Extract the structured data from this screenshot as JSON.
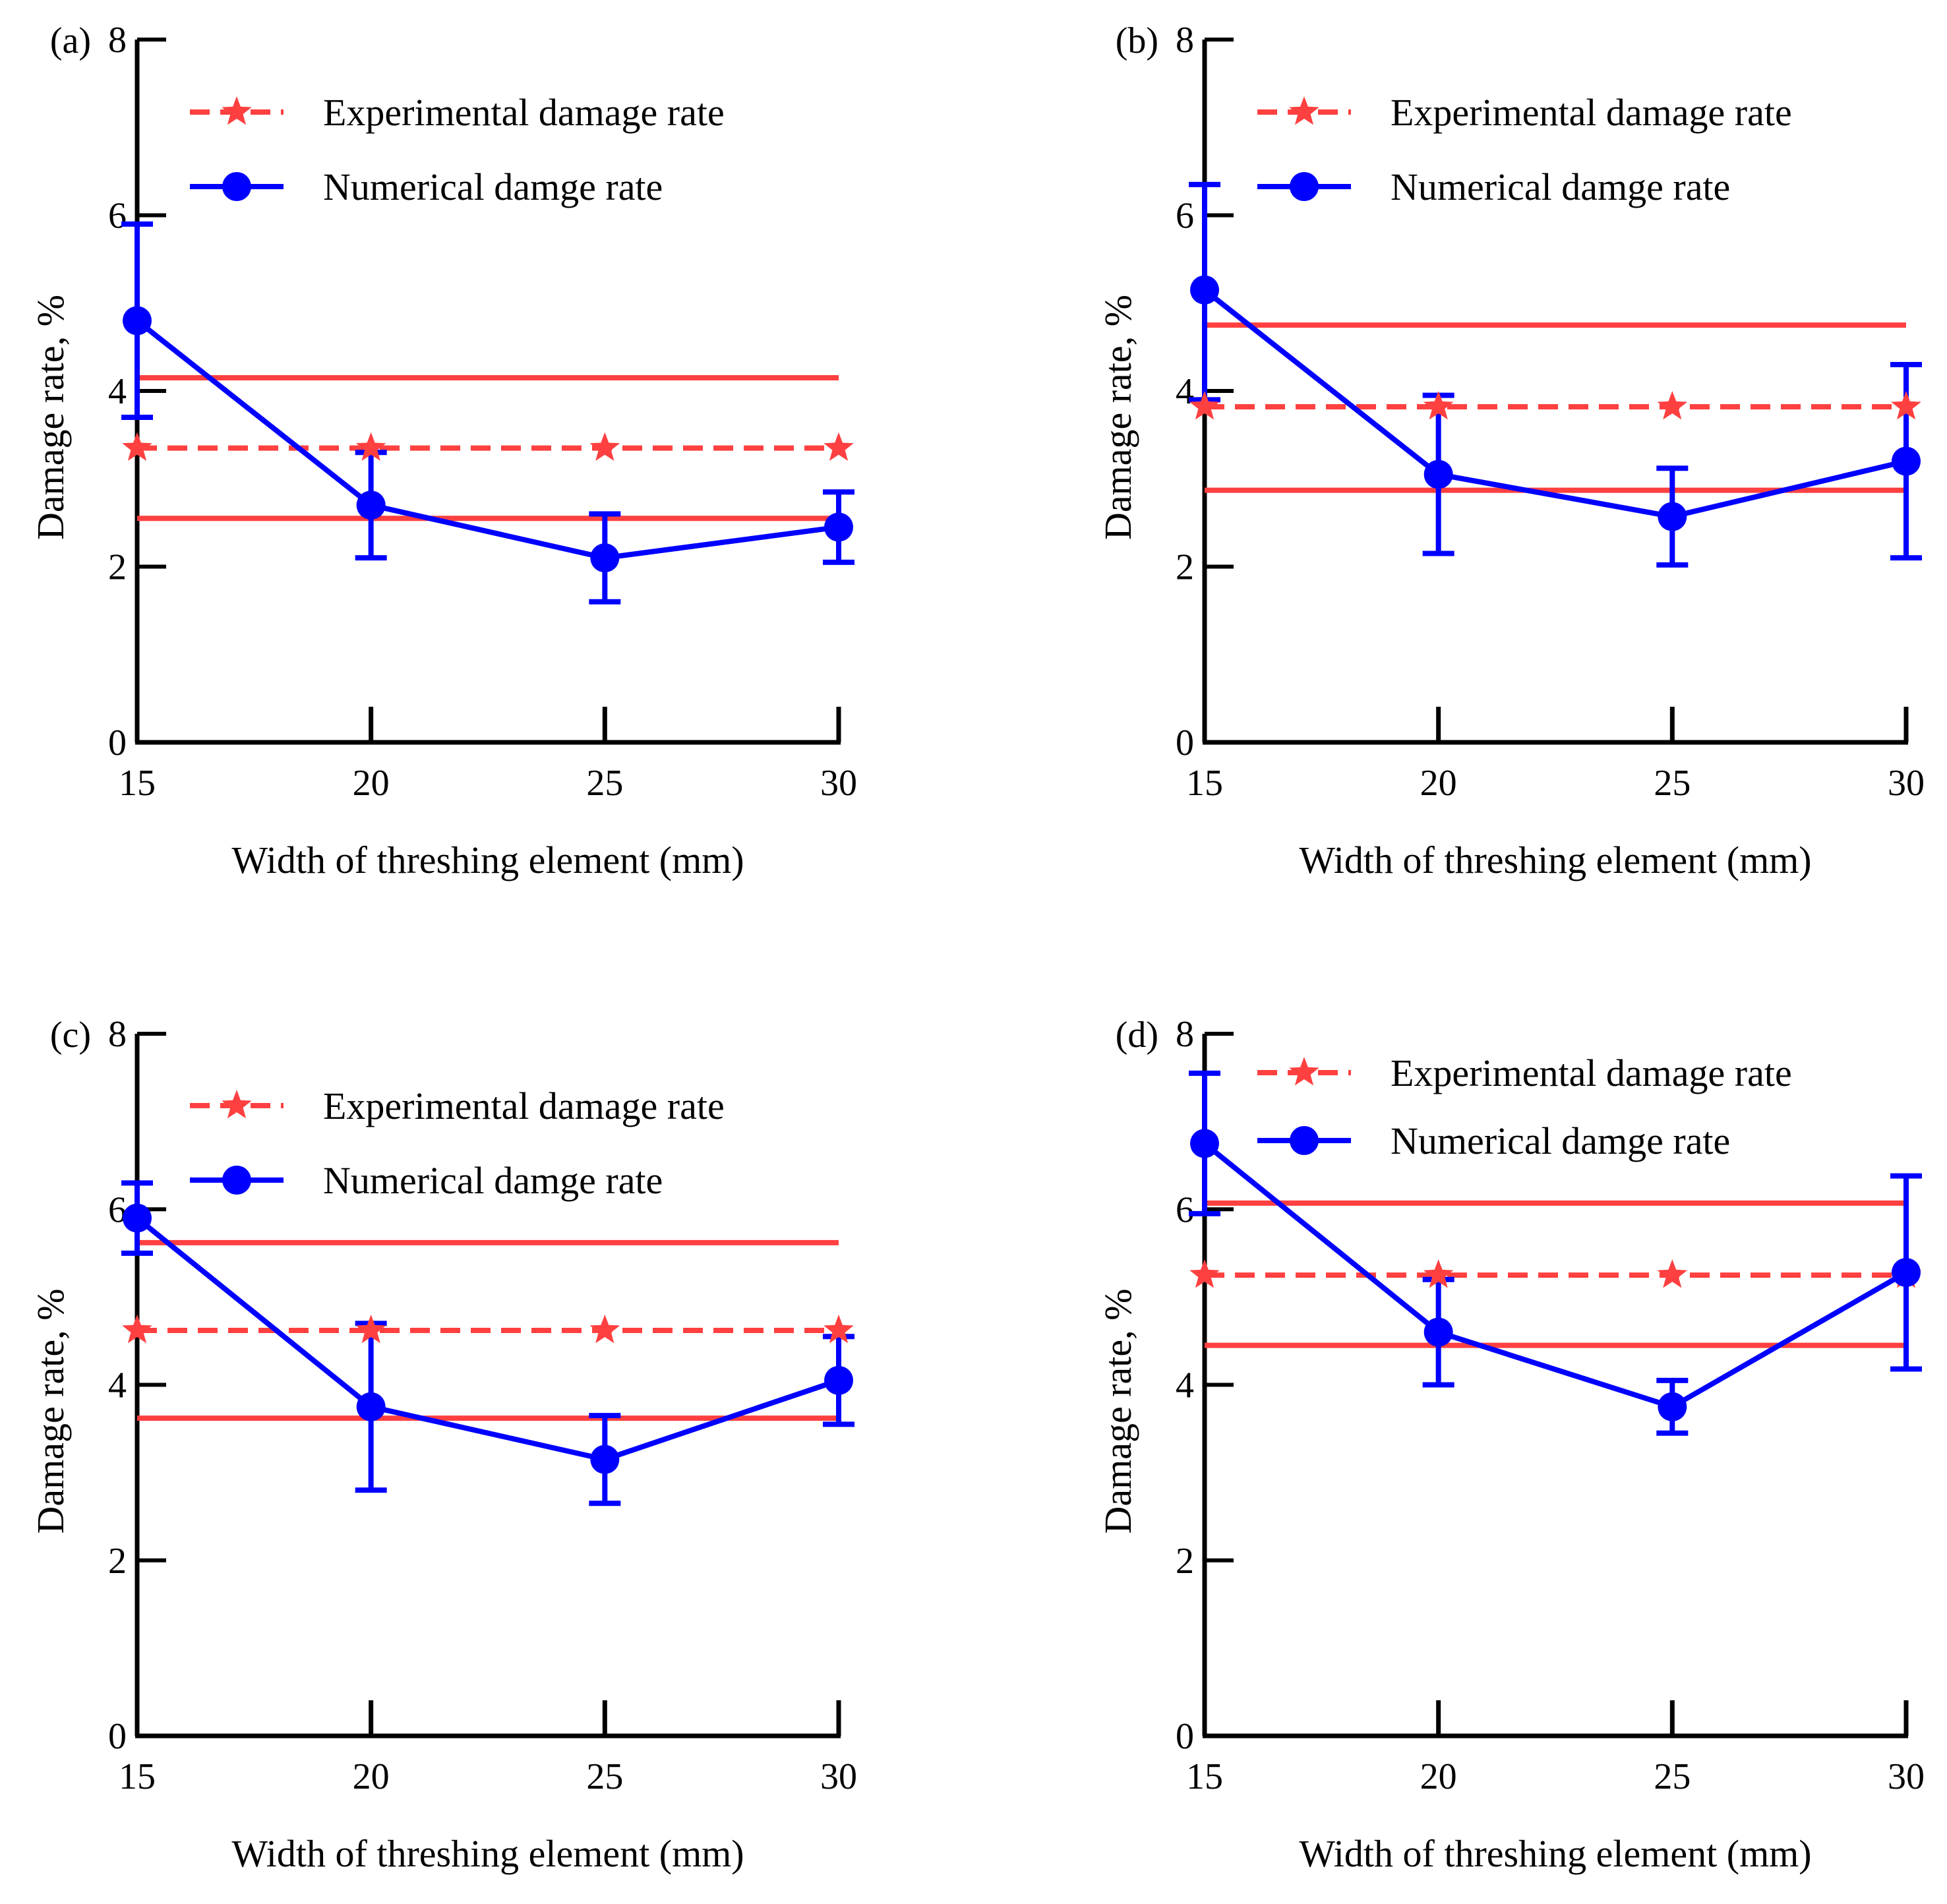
{
  "chart_data": [
    {
      "panel": "(a)",
      "type": "line",
      "xlabel": "Width of threshing element (mm)",
      "ylabel": "Damage rate, %",
      "x": [
        15,
        20,
        25,
        30
      ],
      "xticks": [
        "15",
        "20",
        "25",
        "30"
      ],
      "ylim": [
        0,
        8
      ],
      "yticks": [
        "0",
        "2",
        "4",
        "6",
        "8"
      ],
      "legend": [
        "Experimental damage rate",
        "Numerical damge rate"
      ],
      "legend_placement": "top",
      "series": [
        {
          "name": "Experimental damage rate",
          "style": "dashed-star",
          "color": "#ff4040",
          "values": [
            3.35,
            3.35,
            3.35,
            3.35
          ],
          "upper_band": 4.15,
          "lower_band": 2.55
        },
        {
          "name": "Numerical damge rate",
          "style": "solid-circle",
          "color": "#0000ff",
          "values": [
            4.8,
            2.7,
            2.1,
            2.45
          ],
          "err_low": [
            3.7,
            2.1,
            1.6,
            2.05
          ],
          "err_high": [
            5.9,
            3.3,
            2.6,
            2.85
          ]
        }
      ]
    },
    {
      "panel": "(b)",
      "type": "line",
      "xlabel": "Width of threshing element (mm)",
      "ylabel": "Damage rate, %",
      "x": [
        15,
        20,
        25,
        30
      ],
      "xticks": [
        "15",
        "20",
        "25",
        "30"
      ],
      "ylim": [
        0,
        8
      ],
      "yticks": [
        "0",
        "2",
        "4",
        "6",
        "8"
      ],
      "legend": [
        "Experimental damage rate",
        "Numerical damge rate"
      ],
      "legend_placement": "top",
      "series": [
        {
          "name": "Experimental damage rate",
          "style": "dashed-star",
          "color": "#ff4040",
          "values": [
            3.82,
            3.82,
            3.82,
            3.82
          ],
          "upper_band": 4.75,
          "lower_band": 2.87
        },
        {
          "name": "Numerical damge rate",
          "style": "solid-circle",
          "color": "#0000ff",
          "values": [
            5.15,
            3.05,
            2.57,
            3.2
          ],
          "err_low": [
            3.9,
            2.15,
            2.02,
            2.1
          ],
          "err_high": [
            6.35,
            3.95,
            3.12,
            4.3
          ]
        }
      ]
    },
    {
      "panel": "(c)",
      "type": "line",
      "xlabel": "Width of threshing element (mm)",
      "ylabel": "Damage rate, %",
      "x": [
        15,
        20,
        25,
        30
      ],
      "xticks": [
        "15",
        "20",
        "25",
        "30"
      ],
      "ylim": [
        0,
        8
      ],
      "yticks": [
        "0",
        "2",
        "4",
        "6",
        "8"
      ],
      "legend": [
        "Experimental damage rate",
        "Numerical damge rate"
      ],
      "legend_placement": "top",
      "series": [
        {
          "name": "Experimental damage rate",
          "style": "dashed-star",
          "color": "#ff4040",
          "values": [
            4.62,
            4.62,
            4.62,
            4.62
          ],
          "upper_band": 5.62,
          "lower_band": 3.62
        },
        {
          "name": "Numerical damge rate",
          "style": "solid-circle",
          "color": "#0000ff",
          "values": [
            5.9,
            3.75,
            3.15,
            4.05
          ],
          "err_low": [
            5.5,
            2.8,
            2.65,
            3.55
          ],
          "err_high": [
            6.3,
            4.7,
            3.65,
            4.55
          ]
        }
      ]
    },
    {
      "panel": "(d)",
      "type": "line",
      "xlabel": "Width of threshing element (mm)",
      "ylabel": "Damage rate, %",
      "x": [
        15,
        20,
        25,
        30
      ],
      "xticks": [
        "15",
        "20",
        "25",
        "30"
      ],
      "ylim": [
        0,
        8
      ],
      "yticks": [
        "0",
        "2",
        "4",
        "6",
        "8"
      ],
      "legend": [
        "Experimental damage rate",
        "Numerical damge rate"
      ],
      "legend_placement": "top",
      "series": [
        {
          "name": "Experimental damage rate",
          "style": "dashed-star",
          "color": "#ff4040",
          "values": [
            5.25,
            5.25,
            5.25,
            5.25
          ],
          "upper_band": 6.07,
          "lower_band": 4.45
        },
        {
          "name": "Numerical damge rate",
          "style": "solid-circle",
          "color": "#0000ff",
          "values": [
            6.75,
            4.6,
            3.75,
            5.28
          ],
          "err_low": [
            5.95,
            4.0,
            3.45,
            4.18
          ],
          "err_high": [
            7.55,
            5.2,
            4.05,
            6.38
          ]
        }
      ]
    }
  ]
}
